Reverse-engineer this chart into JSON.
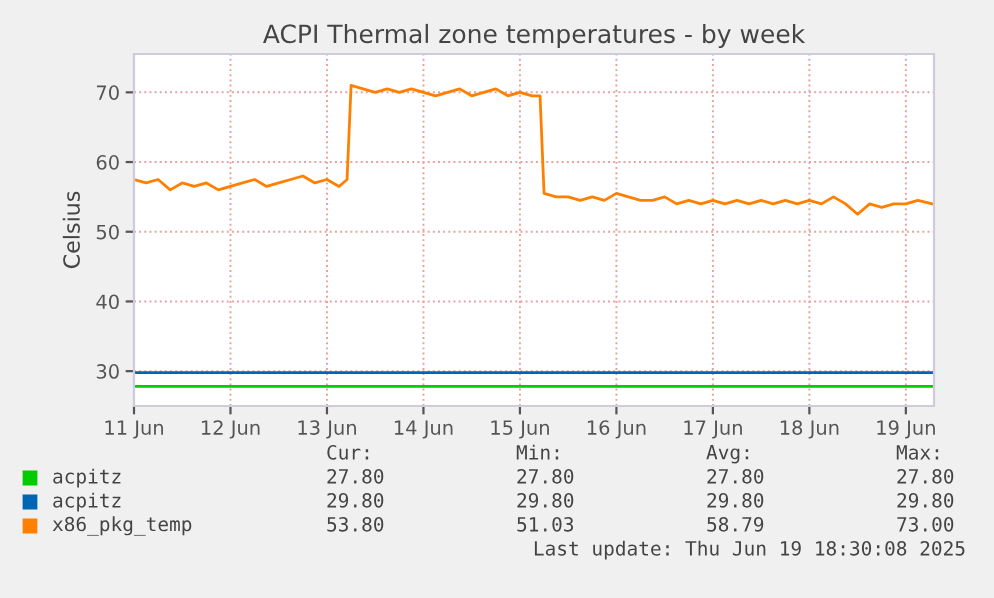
{
  "chart_data": {
    "type": "line",
    "title": "ACPI Thermal zone temperatures - by week",
    "ylabel": "Celsius",
    "xlim": [
      "2025-06-11T00:00",
      "2025-06-19T07:00"
    ],
    "xticks": [
      {
        "value": "2025-06-11",
        "label": "11 Jun"
      },
      {
        "value": "2025-06-12",
        "label": "12 Jun"
      },
      {
        "value": "2025-06-13",
        "label": "13 Jun"
      },
      {
        "value": "2025-06-14",
        "label": "14 Jun"
      },
      {
        "value": "2025-06-15",
        "label": "15 Jun"
      },
      {
        "value": "2025-06-16",
        "label": "16 Jun"
      },
      {
        "value": "2025-06-17",
        "label": "17 Jun"
      },
      {
        "value": "2025-06-18",
        "label": "18 Jun"
      },
      {
        "value": "2025-06-19",
        "label": "19 Jun"
      }
    ],
    "ylim": [
      25,
      75.5
    ],
    "yticks": [
      30,
      40,
      50,
      60,
      70
    ],
    "grid": true,
    "legend": "bottom",
    "series": [
      {
        "name": "acpitz",
        "color": "#00cc00",
        "x": [
          "2025-06-11T00:00",
          "2025-06-19T06:30"
        ],
        "values": [
          27.8,
          27.8
        ]
      },
      {
        "name": "acpitz",
        "color": "#0066b3",
        "x": [
          "2025-06-11T00:00",
          "2025-06-19T06:30"
        ],
        "values": [
          29.8,
          29.8
        ]
      },
      {
        "name": "x86_pkg_temp",
        "color": "#ff8000",
        "x": [
          "2025-06-11T00:00",
          "2025-06-11T03:00",
          "2025-06-11T06:00",
          "2025-06-11T09:00",
          "2025-06-11T12:00",
          "2025-06-11T15:00",
          "2025-06-11T18:00",
          "2025-06-11T21:00",
          "2025-06-12T00:00",
          "2025-06-12T03:00",
          "2025-06-12T06:00",
          "2025-06-12T09:00",
          "2025-06-12T12:00",
          "2025-06-12T15:00",
          "2025-06-12T18:00",
          "2025-06-12T21:00",
          "2025-06-13T00:00",
          "2025-06-13T03:00",
          "2025-06-13T05:00",
          "2025-06-13T06:00",
          "2025-06-13T09:00",
          "2025-06-13T12:00",
          "2025-06-13T15:00",
          "2025-06-13T18:00",
          "2025-06-13T21:00",
          "2025-06-14T00:00",
          "2025-06-14T03:00",
          "2025-06-14T06:00",
          "2025-06-14T09:00",
          "2025-06-14T12:00",
          "2025-06-14T15:00",
          "2025-06-14T18:00",
          "2025-06-14T21:00",
          "2025-06-15T00:00",
          "2025-06-15T03:00",
          "2025-06-15T05:00",
          "2025-06-15T06:00",
          "2025-06-15T09:00",
          "2025-06-15T12:00",
          "2025-06-15T15:00",
          "2025-06-15T18:00",
          "2025-06-15T21:00",
          "2025-06-16T00:00",
          "2025-06-16T03:00",
          "2025-06-16T06:00",
          "2025-06-16T09:00",
          "2025-06-16T12:00",
          "2025-06-16T15:00",
          "2025-06-16T18:00",
          "2025-06-16T21:00",
          "2025-06-17T00:00",
          "2025-06-17T03:00",
          "2025-06-17T06:00",
          "2025-06-17T09:00",
          "2025-06-17T12:00",
          "2025-06-17T15:00",
          "2025-06-17T18:00",
          "2025-06-17T21:00",
          "2025-06-18T00:00",
          "2025-06-18T03:00",
          "2025-06-18T06:00",
          "2025-06-18T09:00",
          "2025-06-18T12:00",
          "2025-06-18T15:00",
          "2025-06-18T18:00",
          "2025-06-18T21:00",
          "2025-06-19T00:00",
          "2025-06-19T03:00",
          "2025-06-19T06:30"
        ],
        "values": [
          57.5,
          57,
          57.5,
          56,
          57,
          56.5,
          57,
          56,
          56.5,
          57,
          57.5,
          56.5,
          57,
          57.5,
          58,
          57,
          57.5,
          56.5,
          57.5,
          71,
          70.5,
          70,
          70.5,
          70,
          70.5,
          70,
          69.5,
          70,
          70.5,
          69.5,
          70,
          70.5,
          69.5,
          70,
          69.5,
          69.5,
          55.5,
          55,
          55,
          54.5,
          55,
          54.5,
          55.5,
          55,
          54.5,
          54.5,
          55,
          54,
          54.5,
          54,
          54.5,
          54,
          54.5,
          54,
          54.5,
          54,
          54.5,
          54,
          54.5,
          54,
          55,
          54,
          52.5,
          54,
          53.5,
          54,
          54,
          54.5,
          54
        ]
      }
    ],
    "annotations": [
      "Cur:",
      "Min:",
      "Avg:",
      "Max:",
      "27.80",
      "27.80",
      "27.80",
      "27.80",
      "29.80",
      "29.80",
      "29.80",
      "29.80",
      "53.80",
      "51.03",
      "58.79",
      "73.00",
      "Last update: Thu Jun 19 18:30:08 2025"
    ]
  }
}
